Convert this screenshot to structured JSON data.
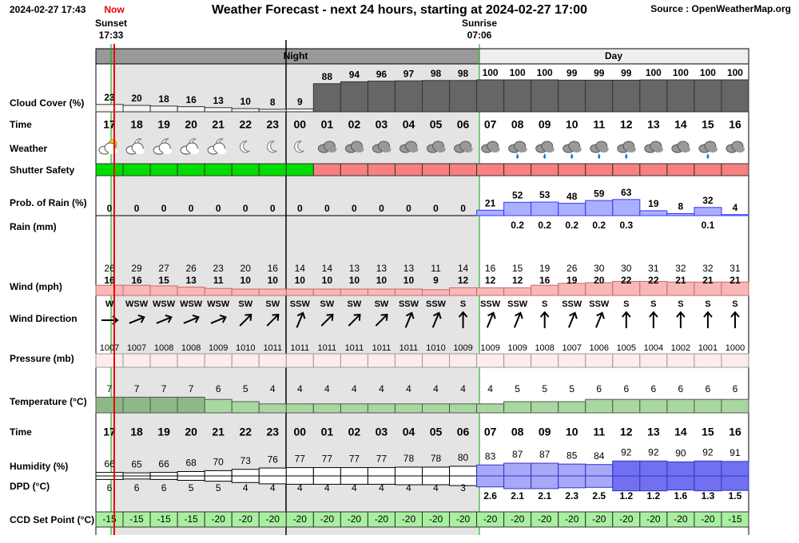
{
  "header": {
    "timestamp": "2024-02-27 17:43",
    "now_label": "Now",
    "title": "Weather Forecast - next 24 hours, starting at 2024-02-27 17:00",
    "source": "Source : OpenWeatherMap.org"
  },
  "sunset": {
    "label": "Sunset",
    "time": "17:33"
  },
  "sunrise": {
    "label": "Sunrise",
    "time": "07:06"
  },
  "periods": {
    "night": "Night",
    "day": "Day"
  },
  "row_labels": {
    "cloud_cover": "Cloud Cover (%)",
    "time": "Time",
    "weather": "Weather",
    "shutter_safety": "Shutter Safety",
    "rain_probability": "Prob. of Rain (%)",
    "rain": "Rain (mm)",
    "wind": "Wind (mph)",
    "wind_direction": "Wind Direction",
    "pressure": "Pressure (mb)",
    "temperature": "Temperature (°C)",
    "humidity": "Humidity (%)",
    "dpd": "DPD (°C)",
    "ccd_set_point": "CCD Set Point (°C)"
  },
  "hours": [
    "17",
    "18",
    "19",
    "20",
    "21",
    "22",
    "23",
    "00",
    "01",
    "02",
    "03",
    "04",
    "05",
    "06",
    "07",
    "08",
    "09",
    "10",
    "11",
    "12",
    "13",
    "14",
    "15",
    "16"
  ],
  "cloud_cover": [
    23,
    20,
    18,
    16,
    13,
    10,
    8,
    9,
    88,
    94,
    96,
    97,
    98,
    98,
    100,
    100,
    100,
    99,
    99,
    99,
    100,
    100,
    100,
    100
  ],
  "shutter_safety_colors": [
    "#00dd00",
    "#00dd00",
    "#00dd00",
    "#00dd00",
    "#00dd00",
    "#00dd00",
    "#00dd00",
    "#00dd00",
    "#f88080",
    "#f88080",
    "#f88080",
    "#f88080",
    "#f88080",
    "#f88080",
    "#f88080",
    "#f88080",
    "#f88080",
    "#f88080",
    "#f88080",
    "#f88080",
    "#f88080",
    "#f88080",
    "#f88080",
    "#f88080"
  ],
  "rain_probability": [
    0,
    0,
    0,
    0,
    0,
    0,
    0,
    0,
    0,
    0,
    0,
    0,
    0,
    0,
    21,
    52,
    53,
    48,
    59,
    63,
    19,
    8,
    32,
    4
  ],
  "rain_mm": [
    null,
    null,
    null,
    null,
    null,
    null,
    null,
    null,
    null,
    null,
    null,
    null,
    null,
    null,
    null,
    0.2,
    0.2,
    0.2,
    0.2,
    0.3,
    null,
    null,
    0.1,
    null
  ],
  "wind_gust": [
    26,
    29,
    27,
    26,
    23,
    20,
    16,
    14,
    14,
    13,
    13,
    13,
    11,
    14,
    16,
    15,
    19,
    26,
    30,
    30,
    31,
    32,
    32,
    31
  ],
  "wind_speed": [
    16,
    16,
    15,
    13,
    11,
    10,
    10,
    10,
    10,
    10,
    10,
    10,
    9,
    12,
    12,
    12,
    16,
    19,
    20,
    22,
    22,
    21,
    21,
    21
  ],
  "wind_direction": [
    "W",
    "WSW",
    "WSW",
    "WSW",
    "WSW",
    "SW",
    "SW",
    "SSW",
    "SW",
    "SW",
    "SW",
    "SSW",
    "SSW",
    "S",
    "SSW",
    "SSW",
    "S",
    "SSW",
    "SSW",
    "S",
    "S",
    "S",
    "S",
    "S"
  ],
  "pressure": [
    1007,
    1007,
    1008,
    1008,
    1009,
    1010,
    1011,
    1011,
    1011,
    1011,
    1011,
    1011,
    1010,
    1009,
    1009,
    1009,
    1008,
    1007,
    1006,
    1005,
    1004,
    1002,
    1001,
    1000
  ],
  "temperature": [
    7,
    7,
    7,
    7,
    6,
    5,
    4,
    4,
    4,
    4,
    4,
    4,
    4,
    4,
    4,
    5,
    5,
    5,
    6,
    6,
    6,
    6,
    6,
    6
  ],
  "humidity": [
    66,
    65,
    66,
    68,
    70,
    73,
    76,
    77,
    77,
    77,
    77,
    78,
    78,
    80,
    83,
    87,
    87,
    85,
    84,
    92,
    92,
    90,
    92,
    91
  ],
  "dpd": [
    6,
    6,
    6,
    5,
    5,
    4,
    4,
    4,
    4,
    4,
    4,
    4,
    4,
    3,
    2.6,
    2.1,
    2.1,
    2.3,
    2.5,
    1.2,
    1.2,
    1.6,
    1.3,
    1.5
  ],
  "ccd_set_point": [
    -15,
    -15,
    -15,
    -15,
    -20,
    -20,
    -20,
    -20,
    -20,
    -20,
    -20,
    -20,
    -20,
    -20,
    -20,
    -20,
    -20,
    -20,
    -20,
    -20,
    -20,
    -20,
    -20,
    -15
  ]
}
